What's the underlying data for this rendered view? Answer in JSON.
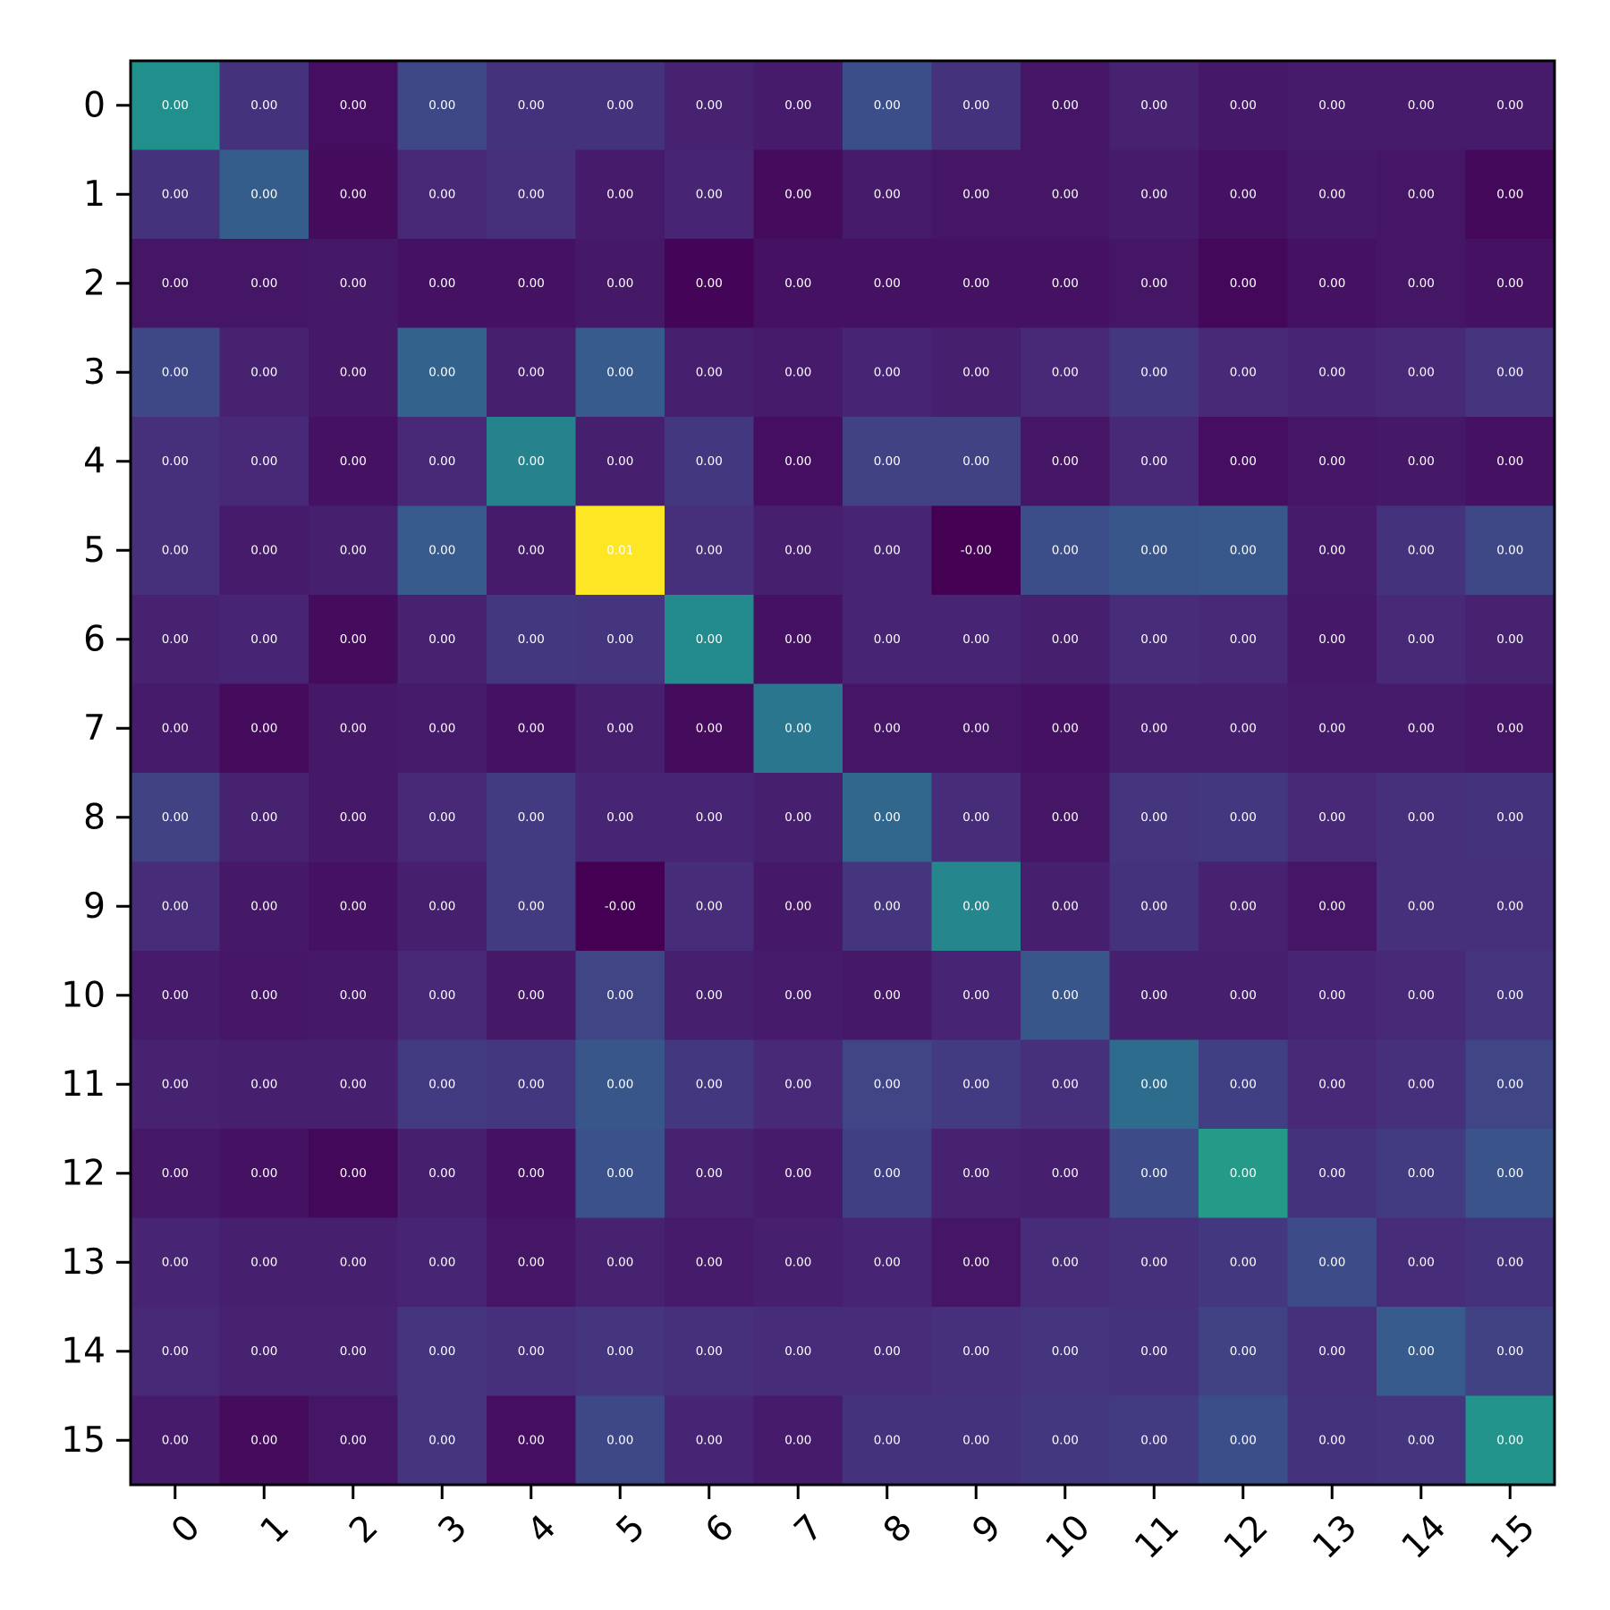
{
  "chart_data": {
    "type": "heatmap",
    "title": "",
    "xlabel": "",
    "ylabel": "",
    "colormap": "viridis",
    "grid": false,
    "x_tick_labels": [
      "0",
      "1",
      "2",
      "3",
      "4",
      "5",
      "6",
      "7",
      "8",
      "9",
      "10",
      "11",
      "12",
      "13",
      "14",
      "15"
    ],
    "y_tick_labels": [
      "0",
      "1",
      "2",
      "3",
      "4",
      "5",
      "6",
      "7",
      "8",
      "9",
      "10",
      "11",
      "12",
      "13",
      "14",
      "15"
    ],
    "intensity": [
      [
        0.5,
        0.15,
        0.04,
        0.22,
        0.15,
        0.15,
        0.1,
        0.08,
        0.24,
        0.15,
        0.06,
        0.1,
        0.07,
        0.08,
        0.08,
        0.08
      ],
      [
        0.15,
        0.3,
        0.03,
        0.12,
        0.14,
        0.08,
        0.11,
        0.03,
        0.08,
        0.06,
        0.06,
        0.08,
        0.05,
        0.07,
        0.06,
        0.02
      ],
      [
        0.06,
        0.06,
        0.07,
        0.05,
        0.05,
        0.07,
        0.01,
        0.05,
        0.05,
        0.05,
        0.05,
        0.06,
        0.02,
        0.05,
        0.06,
        0.05
      ],
      [
        0.22,
        0.1,
        0.07,
        0.32,
        0.09,
        0.29,
        0.09,
        0.08,
        0.11,
        0.09,
        0.12,
        0.17,
        0.12,
        0.11,
        0.12,
        0.16
      ],
      [
        0.14,
        0.12,
        0.05,
        0.12,
        0.45,
        0.09,
        0.17,
        0.04,
        0.2,
        0.2,
        0.06,
        0.12,
        0.04,
        0.06,
        0.07,
        0.05
      ],
      [
        0.14,
        0.08,
        0.09,
        0.29,
        0.08,
        1.0,
        0.14,
        0.09,
        0.11,
        0.0,
        0.24,
        0.27,
        0.28,
        0.08,
        0.15,
        0.22
      ],
      [
        0.1,
        0.11,
        0.03,
        0.1,
        0.17,
        0.16,
        0.48,
        0.05,
        0.11,
        0.11,
        0.09,
        0.13,
        0.12,
        0.07,
        0.12,
        0.1
      ],
      [
        0.08,
        0.03,
        0.07,
        0.08,
        0.05,
        0.09,
        0.03,
        0.4,
        0.06,
        0.06,
        0.05,
        0.09,
        0.09,
        0.08,
        0.08,
        0.06
      ],
      [
        0.2,
        0.1,
        0.07,
        0.12,
        0.18,
        0.11,
        0.11,
        0.09,
        0.34,
        0.13,
        0.06,
        0.16,
        0.17,
        0.12,
        0.14,
        0.15
      ],
      [
        0.13,
        0.07,
        0.05,
        0.09,
        0.18,
        0.0,
        0.13,
        0.07,
        0.16,
        0.46,
        0.09,
        0.15,
        0.1,
        0.06,
        0.14,
        0.14
      ],
      [
        0.08,
        0.06,
        0.07,
        0.12,
        0.07,
        0.21,
        0.09,
        0.08,
        0.07,
        0.11,
        0.27,
        0.09,
        0.09,
        0.11,
        0.12,
        0.16
      ],
      [
        0.1,
        0.09,
        0.09,
        0.18,
        0.17,
        0.27,
        0.17,
        0.12,
        0.21,
        0.18,
        0.14,
        0.36,
        0.19,
        0.12,
        0.14,
        0.21
      ],
      [
        0.07,
        0.05,
        0.02,
        0.09,
        0.05,
        0.25,
        0.1,
        0.08,
        0.19,
        0.1,
        0.09,
        0.23,
        0.55,
        0.15,
        0.18,
        0.26
      ],
      [
        0.11,
        0.09,
        0.09,
        0.11,
        0.06,
        0.1,
        0.08,
        0.09,
        0.11,
        0.06,
        0.13,
        0.14,
        0.17,
        0.23,
        0.13,
        0.15
      ],
      [
        0.12,
        0.1,
        0.1,
        0.16,
        0.14,
        0.16,
        0.14,
        0.13,
        0.13,
        0.14,
        0.16,
        0.15,
        0.2,
        0.14,
        0.29,
        0.2
      ],
      [
        0.08,
        0.03,
        0.06,
        0.16,
        0.04,
        0.22,
        0.11,
        0.08,
        0.15,
        0.15,
        0.17,
        0.18,
        0.24,
        0.15,
        0.16,
        0.52
      ]
    ],
    "cell_labels": [
      [
        "0.00",
        "0.00",
        "0.00",
        "0.00",
        "0.00",
        "0.00",
        "0.00",
        "0.00",
        "0.00",
        "0.00",
        "0.00",
        "0.00",
        "0.00",
        "0.00",
        "0.00",
        "0.00"
      ],
      [
        "0.00",
        "0.00",
        "0.00",
        "0.00",
        "0.00",
        "0.00",
        "0.00",
        "0.00",
        "0.00",
        "0.00",
        "0.00",
        "0.00",
        "0.00",
        "0.00",
        "0.00",
        "0.00"
      ],
      [
        "0.00",
        "0.00",
        "0.00",
        "0.00",
        "0.00",
        "0.00",
        "0.00",
        "0.00",
        "0.00",
        "0.00",
        "0.00",
        "0.00",
        "0.00",
        "0.00",
        "0.00",
        "0.00"
      ],
      [
        "0.00",
        "0.00",
        "0.00",
        "0.00",
        "0.00",
        "0.00",
        "0.00",
        "0.00",
        "0.00",
        "0.00",
        "0.00",
        "0.00",
        "0.00",
        "0.00",
        "0.00",
        "0.00"
      ],
      [
        "0.00",
        "0.00",
        "0.00",
        "0.00",
        "0.00",
        "0.00",
        "0.00",
        "0.00",
        "0.00",
        "0.00",
        "0.00",
        "0.00",
        "0.00",
        "0.00",
        "0.00",
        "0.00"
      ],
      [
        "0.00",
        "0.00",
        "0.00",
        "0.00",
        "0.00",
        "0.01",
        "0.00",
        "0.00",
        "0.00",
        "-0.00",
        "0.00",
        "0.00",
        "0.00",
        "0.00",
        "0.00",
        "0.00"
      ],
      [
        "0.00",
        "0.00",
        "0.00",
        "0.00",
        "0.00",
        "0.00",
        "0.00",
        "0.00",
        "0.00",
        "0.00",
        "0.00",
        "0.00",
        "0.00",
        "0.00",
        "0.00",
        "0.00"
      ],
      [
        "0.00",
        "0.00",
        "0.00",
        "0.00",
        "0.00",
        "0.00",
        "0.00",
        "0.00",
        "0.00",
        "0.00",
        "0.00",
        "0.00",
        "0.00",
        "0.00",
        "0.00",
        "0.00"
      ],
      [
        "0.00",
        "0.00",
        "0.00",
        "0.00",
        "0.00",
        "0.00",
        "0.00",
        "0.00",
        "0.00",
        "0.00",
        "0.00",
        "0.00",
        "0.00",
        "0.00",
        "0.00",
        "0.00"
      ],
      [
        "0.00",
        "0.00",
        "0.00",
        "0.00",
        "0.00",
        "-0.00",
        "0.00",
        "0.00",
        "0.00",
        "0.00",
        "0.00",
        "0.00",
        "0.00",
        "0.00",
        "0.00",
        "0.00"
      ],
      [
        "0.00",
        "0.00",
        "0.00",
        "0.00",
        "0.00",
        "0.00",
        "0.00",
        "0.00",
        "0.00",
        "0.00",
        "0.00",
        "0.00",
        "0.00",
        "0.00",
        "0.00",
        "0.00"
      ],
      [
        "0.00",
        "0.00",
        "0.00",
        "0.00",
        "0.00",
        "0.00",
        "0.00",
        "0.00",
        "0.00",
        "0.00",
        "0.00",
        "0.00",
        "0.00",
        "0.00",
        "0.00",
        "0.00"
      ],
      [
        "0.00",
        "0.00",
        "0.00",
        "0.00",
        "0.00",
        "0.00",
        "0.00",
        "0.00",
        "0.00",
        "0.00",
        "0.00",
        "0.00",
        "0.00",
        "0.00",
        "0.00",
        "0.00"
      ],
      [
        "0.00",
        "0.00",
        "0.00",
        "0.00",
        "0.00",
        "0.00",
        "0.00",
        "0.00",
        "0.00",
        "0.00",
        "0.00",
        "0.00",
        "0.00",
        "0.00",
        "0.00",
        "0.00"
      ],
      [
        "0.00",
        "0.00",
        "0.00",
        "0.00",
        "0.00",
        "0.00",
        "0.00",
        "0.00",
        "0.00",
        "0.00",
        "0.00",
        "0.00",
        "0.00",
        "0.00",
        "0.00",
        "0.00"
      ],
      [
        "0.00",
        "0.00",
        "0.00",
        "0.00",
        "0.00",
        "0.00",
        "0.00",
        "0.00",
        "0.00",
        "0.00",
        "0.00",
        "0.00",
        "0.00",
        "0.00",
        "0.00",
        "0.00"
      ]
    ]
  }
}
